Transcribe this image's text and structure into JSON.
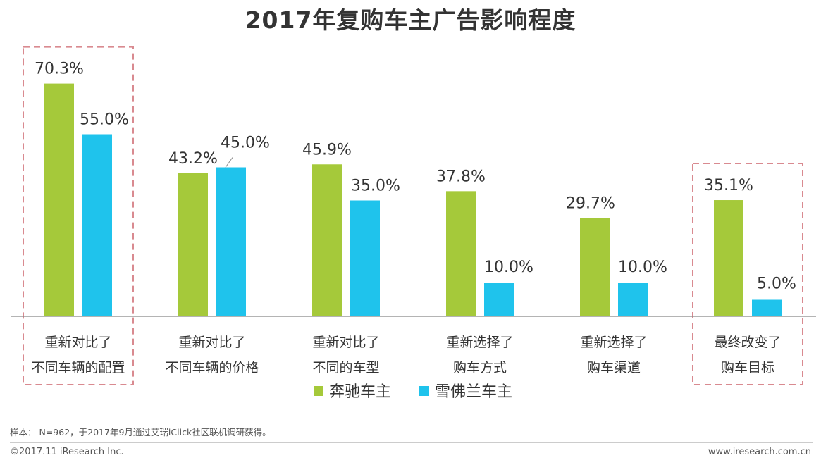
{
  "chart_data": {
    "type": "bar",
    "title": "2017年复购车主广告影响程度",
    "xlabel": "",
    "ylabel": "",
    "categories": [
      [
        "重新对比了",
        "不同车辆的配置"
      ],
      [
        "重新对比了",
        "不同车辆的价格"
      ],
      [
        "重新对比了",
        "不同的车型"
      ],
      [
        "重新选择了",
        "购车方式"
      ],
      [
        "重新选择了",
        "购车渠道"
      ],
      [
        "最终改变了",
        "购车目标"
      ]
    ],
    "series": [
      {
        "name": "奔驰车主",
        "color": "#a5c93a",
        "values": [
          70.3,
          43.2,
          45.9,
          37.8,
          29.7,
          35.1
        ],
        "labels": [
          "70.3%",
          "43.2%",
          "45.9%",
          "37.8%",
          "29.7%",
          "35.1%"
        ]
      },
      {
        "name": "雪佛兰车主",
        "color": "#1fc3ec",
        "values": [
          55.0,
          45.0,
          35.0,
          10.0,
          10.0,
          5.0
        ],
        "labels": [
          "55.0%",
          "45.0%",
          "35.0%",
          "10.0%",
          "10.0%",
          "5.0%"
        ]
      }
    ],
    "ylim": [
      0,
      80
    ],
    "grid": false,
    "legend_position": "bottom-center",
    "highlighted_categories": [
      0,
      5
    ],
    "highlight_color": "#d98a90"
  },
  "footer": {
    "note": "样本： N=962，于2017年9月通过艾瑞iClick社区联机调研获得。",
    "copyright": "©2017.11 iResearch Inc.",
    "url": "www.iresearch.com.cn"
  }
}
